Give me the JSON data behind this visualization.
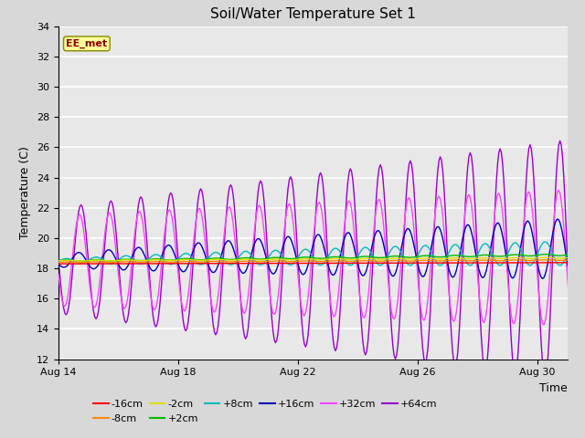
{
  "title": "Soil/Water Temperature Set 1",
  "xlabel": "Time",
  "ylabel": "Temperature (C)",
  "ylim": [
    12,
    34
  ],
  "xlim": [
    0,
    17
  ],
  "yticks": [
    12,
    14,
    16,
    18,
    20,
    22,
    24,
    26,
    28,
    30,
    32,
    34
  ],
  "xtick_labels": [
    "Aug 14",
    "Aug 18",
    "Aug 22",
    "Aug 26",
    "Aug 30"
  ],
  "xtick_pos": [
    0,
    4,
    8,
    12,
    16
  ],
  "background_color": "#d8d8d8",
  "plot_bg_color": "#e8e8e8",
  "grid_color": "#ffffff",
  "series": {
    "-16cm": {
      "color": "#ff0000"
    },
    "-8cm": {
      "color": "#ff8800"
    },
    "-2cm": {
      "color": "#dddd00"
    },
    "+2cm": {
      "color": "#00bb00"
    },
    "+8cm": {
      "color": "#00bbbb"
    },
    "+16cm": {
      "color": "#0000bb"
    },
    "+32cm": {
      "color": "#ff44ff"
    },
    "+64cm": {
      "color": "#9900cc"
    }
  },
  "watermark": "EE_met",
  "watermark_color": "#8b0000",
  "watermark_bg": "#ffff99",
  "base_temp": 18.5,
  "n_days": 17,
  "seed": 42
}
